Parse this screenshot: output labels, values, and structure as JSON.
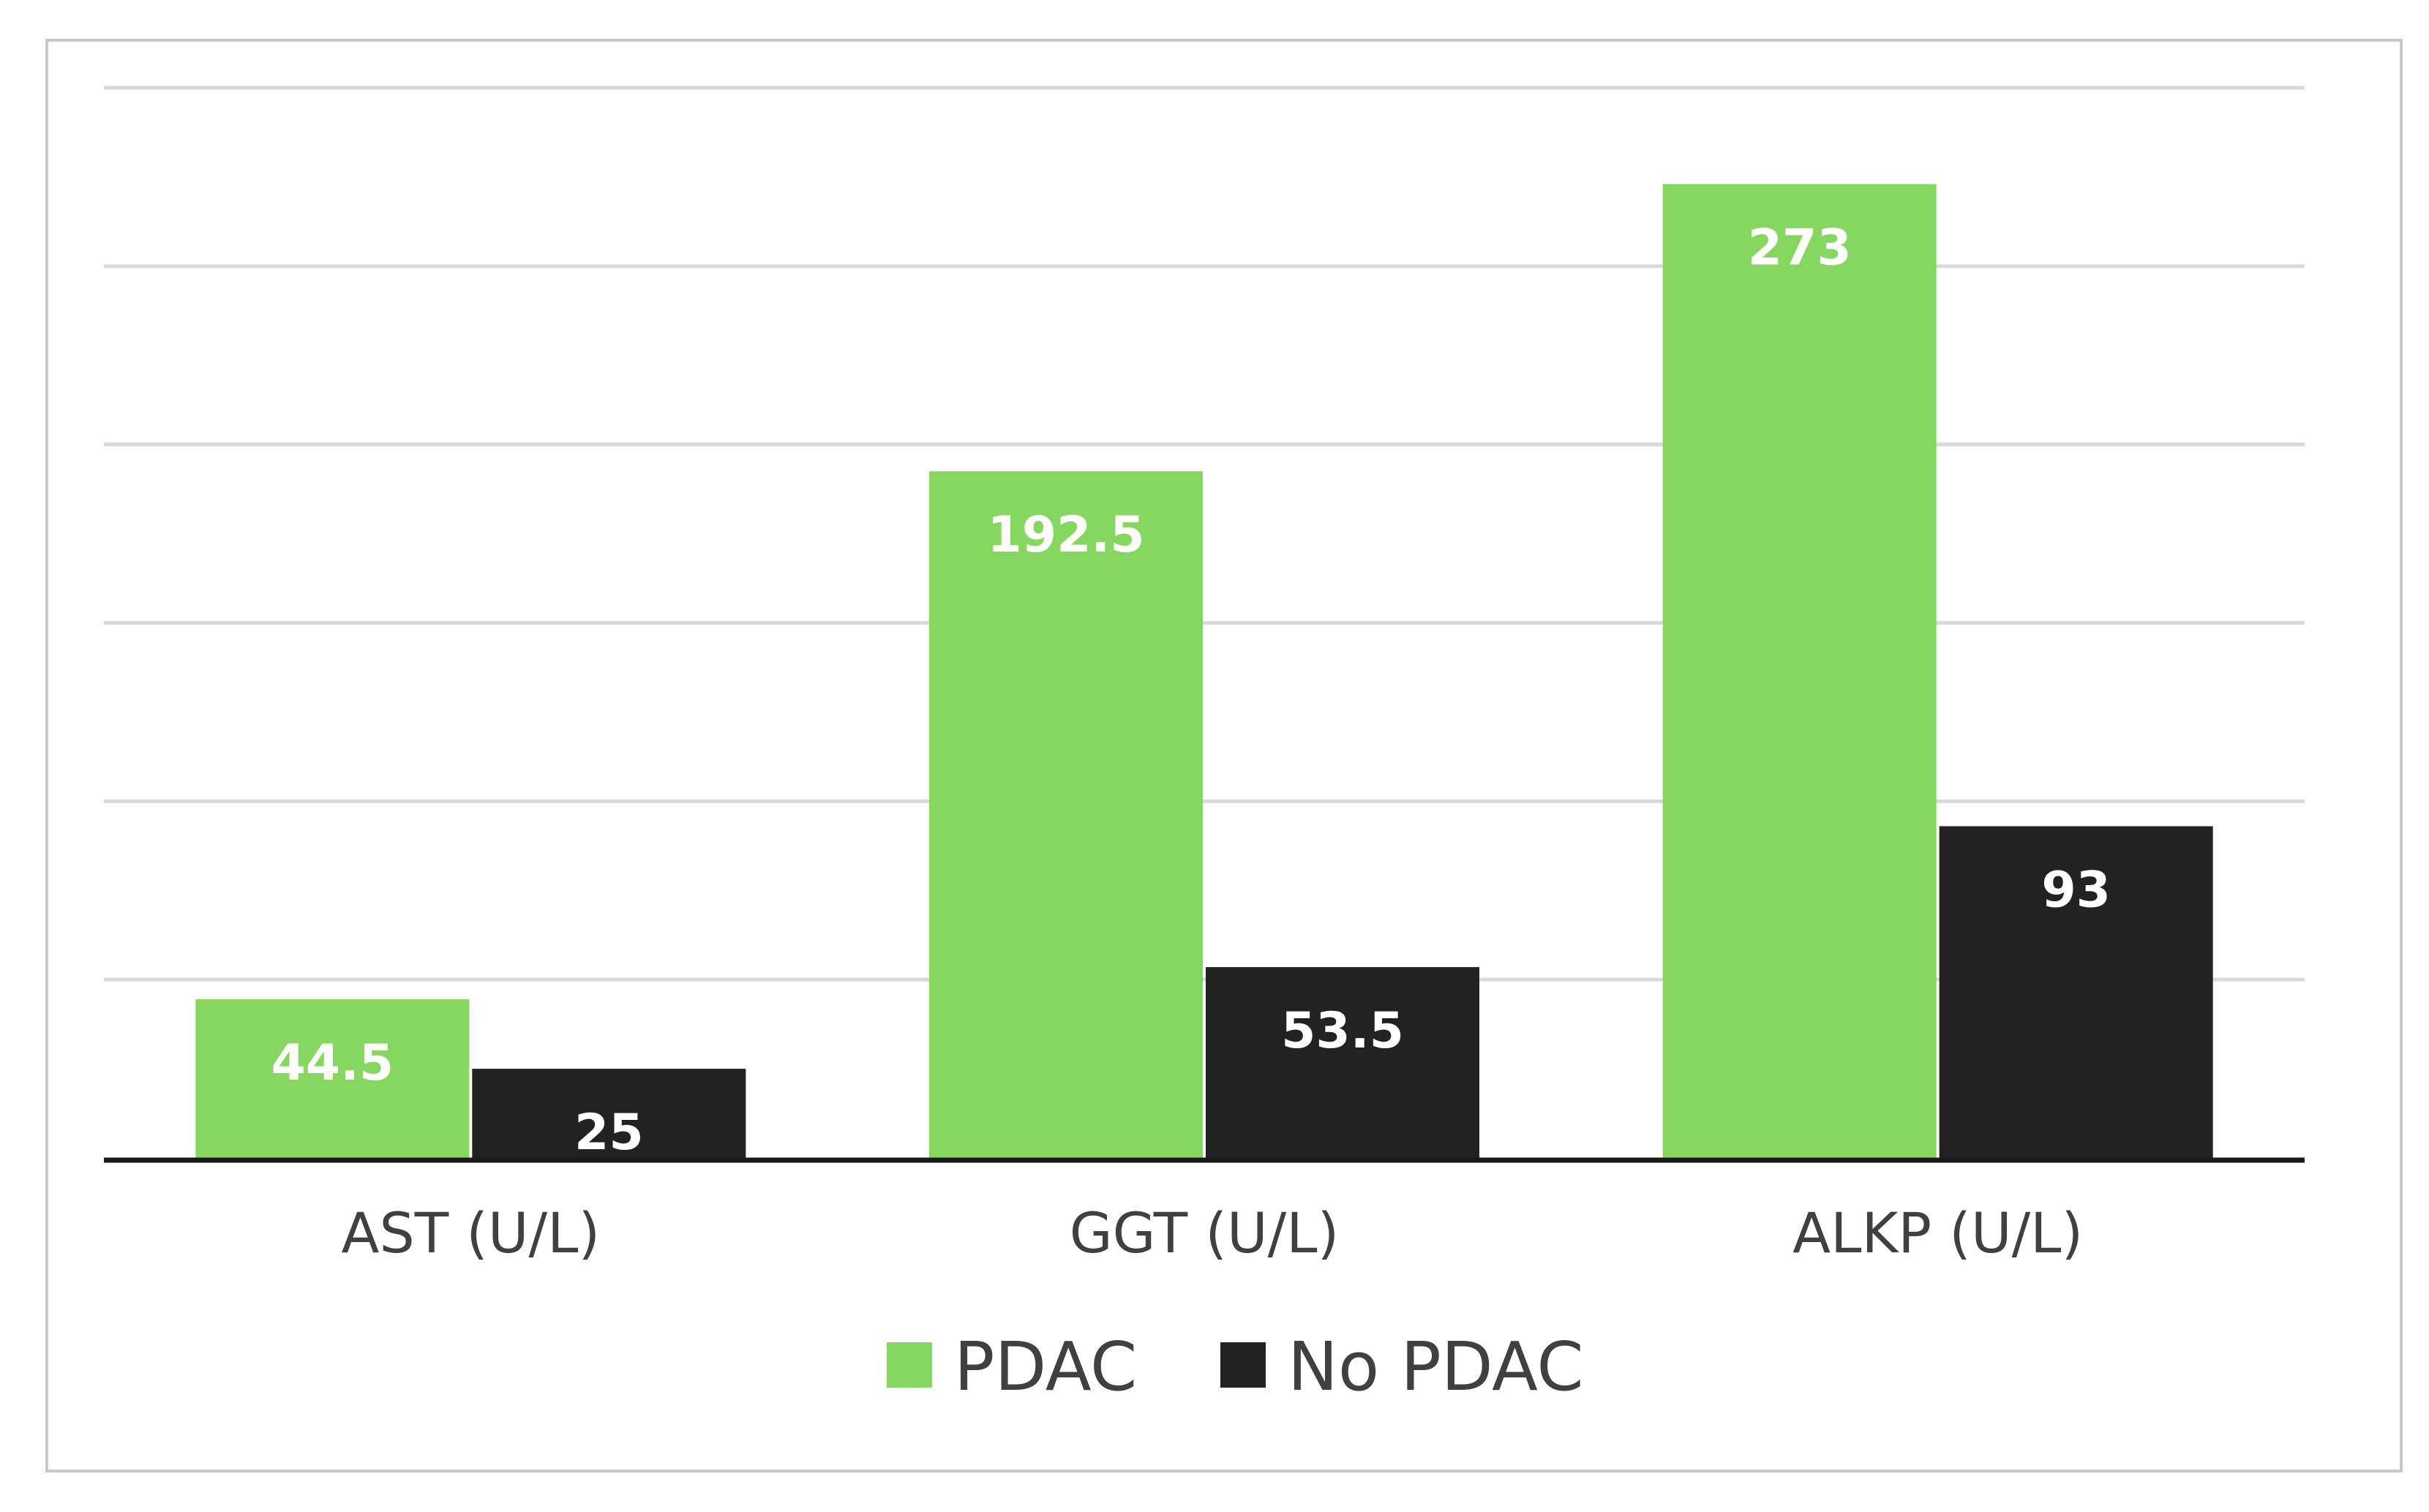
{
  "chart_data": {
    "type": "bar",
    "categories": [
      "AST (U/L)",
      "GGT (U/L)",
      "ALKP (U/L)"
    ],
    "series": [
      {
        "name": "PDAC",
        "values": [
          44.5,
          192.5,
          273
        ],
        "labels": [
          "44.5",
          "192.5",
          "273"
        ]
      },
      {
        "name": "No PDAC",
        "values": [
          25,
          53.5,
          93
        ],
        "labels": [
          "25",
          "53.5",
          "93"
        ]
      }
    ],
    "ylim": [
      0,
      300
    ],
    "gridlines": [
      0,
      50,
      100,
      150,
      200,
      250,
      300
    ],
    "grid": true,
    "legend_position": "bottom",
    "data_labels": "inside-top",
    "colors": {
      "PDAC": "#86d760",
      "No PDAC": "#222222"
    }
  }
}
